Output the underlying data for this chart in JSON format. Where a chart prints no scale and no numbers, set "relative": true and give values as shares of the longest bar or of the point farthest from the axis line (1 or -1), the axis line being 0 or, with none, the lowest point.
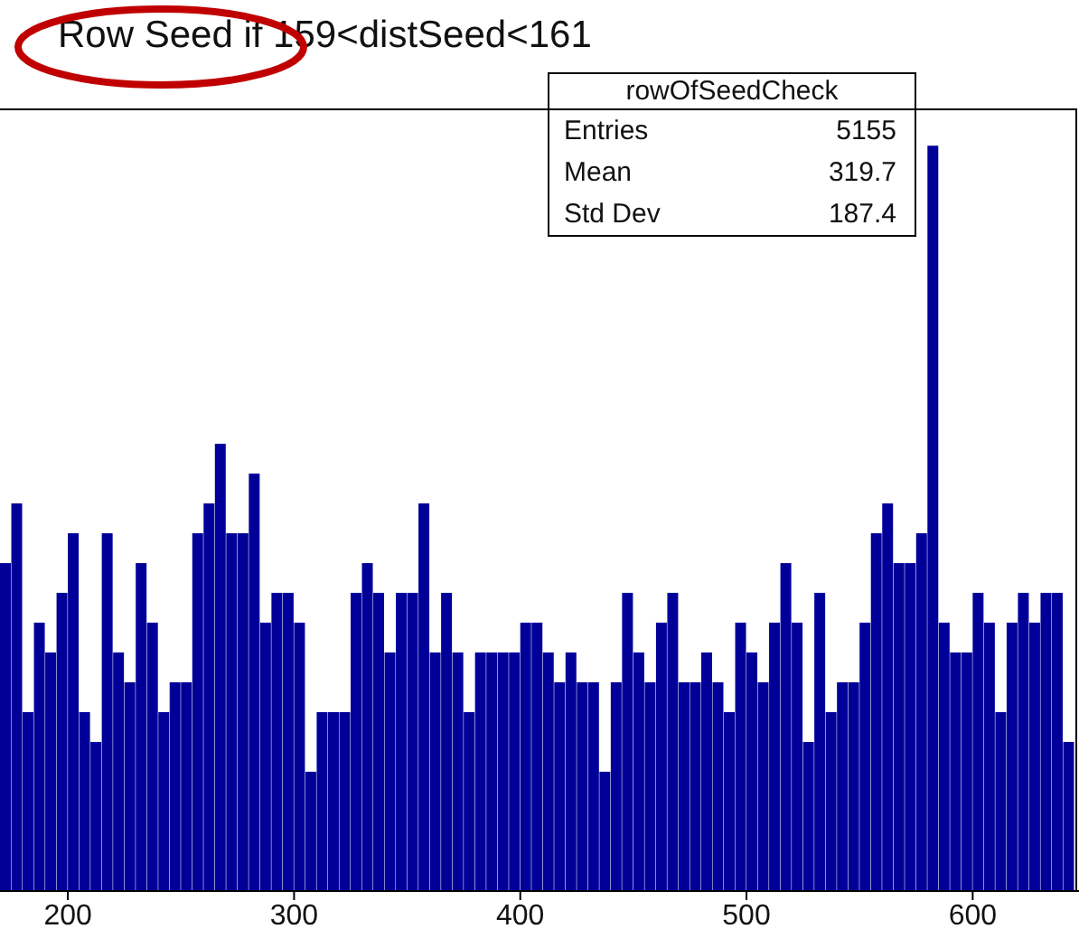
{
  "chart_data": {
    "type": "bar",
    "title": "Row Seed if 159<distSeed<161",
    "relative": true,
    "color": "#000099",
    "x": [
      172.5,
      177.5,
      182.5,
      187.5,
      192.5,
      197.5,
      202.5,
      207.5,
      212.5,
      217.5,
      222.5,
      227.5,
      232.5,
      237.5,
      242.5,
      247.5,
      252.5,
      257.5,
      262.5,
      267.5,
      272.5,
      277.5,
      282.5,
      287.5,
      292.5,
      297.5,
      302.5,
      307.5,
      312.5,
      317.5,
      322.5,
      327.5,
      332.5,
      337.5,
      342.5,
      347.5,
      352.5,
      357.5,
      362.5,
      367.5,
      372.5,
      377.5,
      382.5,
      387.5,
      392.5,
      397.5,
      402.5,
      407.5,
      412.5,
      417.5,
      422.5,
      427.5,
      432.5,
      437.5,
      442.5,
      447.5,
      452.5,
      457.5,
      462.5,
      467.5,
      472.5,
      477.5,
      482.5,
      487.5,
      492.5,
      497.5,
      502.5,
      507.5,
      512.5,
      517.5,
      522.5,
      527.5,
      532.5,
      537.5,
      542.5,
      547.5,
      552.5,
      557.5,
      562.5,
      567.5,
      572.5,
      577.5,
      582.5,
      587.5,
      592.5,
      597.5,
      602.5,
      607.5,
      612.5,
      617.5,
      622.5,
      627.5,
      632.5,
      637.5,
      642.5
    ],
    "values": [
      0.44,
      0.52,
      0.24,
      0.36,
      0.32,
      0.4,
      0.48,
      0.24,
      0.2,
      0.48,
      0.32,
      0.28,
      0.44,
      0.36,
      0.24,
      0.28,
      0.28,
      0.48,
      0.52,
      0.6,
      0.48,
      0.48,
      0.56,
      0.36,
      0.4,
      0.4,
      0.36,
      0.16,
      0.24,
      0.24,
      0.24,
      0.4,
      0.44,
      0.4,
      0.32,
      0.4,
      0.4,
      0.52,
      0.32,
      0.4,
      0.32,
      0.24,
      0.32,
      0.32,
      0.32,
      0.32,
      0.36,
      0.36,
      0.32,
      0.28,
      0.32,
      0.28,
      0.28,
      0.16,
      0.28,
      0.4,
      0.32,
      0.28,
      0.36,
      0.4,
      0.28,
      0.28,
      0.32,
      0.28,
      0.24,
      0.36,
      0.32,
      0.28,
      0.36,
      0.44,
      0.36,
      0.2,
      0.4,
      0.24,
      0.28,
      0.28,
      0.36,
      0.48,
      0.52,
      0.44,
      0.44,
      0.48,
      1,
      0.36,
      0.32,
      0.32,
      0.4,
      0.36,
      0.24,
      0.36,
      0.4,
      0.36,
      0.4,
      0.4,
      0.2
    ],
    "xlim": [
      170,
      647
    ],
    "xticks": [
      200,
      300,
      400,
      500,
      600
    ],
    "annotations": [
      "rowOfSeedCheck",
      "Entries 5155",
      "Mean 319.7",
      "Std Dev 187.4"
    ]
  }
}
